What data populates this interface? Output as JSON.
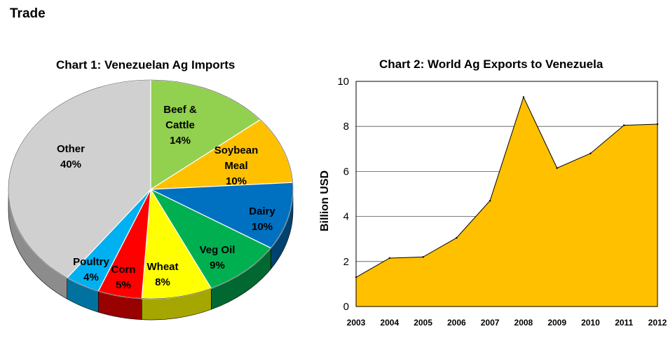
{
  "page": {
    "heading": "Trade"
  },
  "chart_data": [
    {
      "type": "pie",
      "title": "Chart 1: Venezuelan Ag Imports",
      "slices": [
        {
          "name": "Beef & Cattle",
          "label_lines": [
            "Beef &",
            "Cattle",
            "14%"
          ],
          "value": 14,
          "color": "#92D050",
          "side_color": "#5E8A2E"
        },
        {
          "name": "Soybean Meal",
          "label_lines": [
            "Soybean",
            "Meal",
            "10%"
          ],
          "value": 10,
          "color": "#FFC000",
          "side_color": "#A67C00"
        },
        {
          "name": "Dairy",
          "label_lines": [
            "Dairy",
            "10%"
          ],
          "value": 10,
          "color": "#0070C0",
          "side_color": "#00426F"
        },
        {
          "name": "Veg Oil",
          "label_lines": [
            "Veg Oil",
            "9%"
          ],
          "value": 9,
          "color": "#00B050",
          "side_color": "#006830"
        },
        {
          "name": "Wheat",
          "label_lines": [
            "Wheat",
            "8%"
          ],
          "value": 8,
          "color": "#FFFF00",
          "side_color": "#A6A600"
        },
        {
          "name": "Corn",
          "label_lines": [
            "Corn",
            "5%"
          ],
          "value": 5,
          "color": "#FF0000",
          "side_color": "#990000"
        },
        {
          "name": "Poultry",
          "label_lines": [
            "Poultry",
            "4%"
          ],
          "value": 4,
          "color": "#00B0F0",
          "side_color": "#0072A0"
        },
        {
          "name": "Other",
          "label_lines": [
            "Other",
            "40%"
          ],
          "value": 40,
          "color": "#D0D0D0",
          "side_color": "#8C8C8C"
        }
      ]
    },
    {
      "type": "area",
      "title": "Chart  2: World Ag Exports to Venezuela",
      "x": [
        "2003",
        "2004",
        "2005",
        "2006",
        "2007",
        "2008",
        "2009",
        "2010",
        "2011",
        "2012"
      ],
      "values": [
        1.3,
        2.15,
        2.2,
        3.05,
        4.7,
        9.3,
        6.15,
        6.8,
        8.05,
        8.1
      ],
      "ylabel": "Billion USD",
      "xlabel": "",
      "ylim": [
        0,
        10
      ],
      "yticks": [
        "0",
        "2",
        "4",
        "6",
        "8",
        "10"
      ],
      "grid": true,
      "color": "#FFC000"
    }
  ]
}
